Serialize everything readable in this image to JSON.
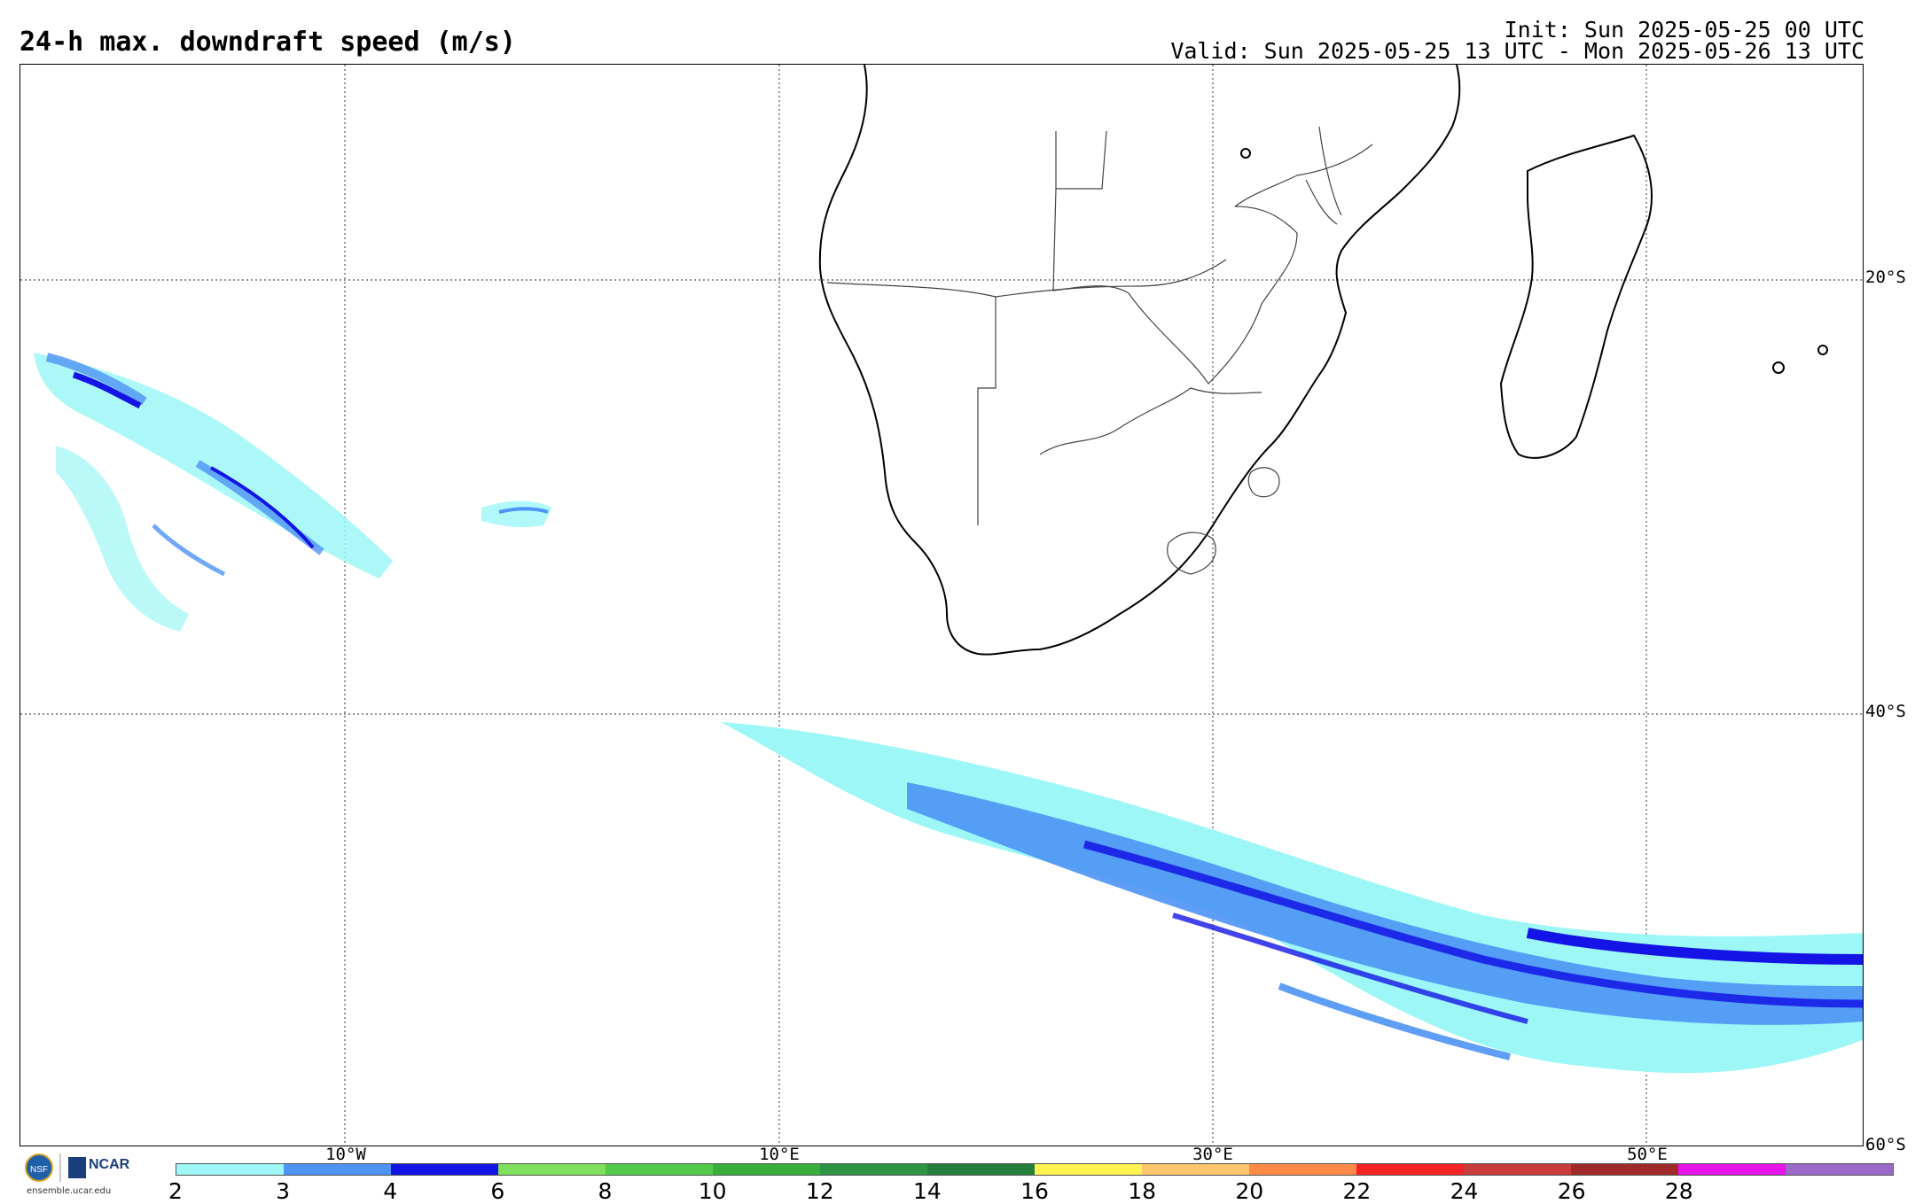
{
  "header": {
    "title": "24-h max. downdraft speed (m/s)",
    "init": "Init: Sun 2025-05-25 00 UTC",
    "valid": "Valid: Sun 2025-05-25 13 UTC - Mon 2025-05-26 13 UTC"
  },
  "map": {
    "region": "Southern Africa and South Atlantic / Indian Ocean",
    "lat_labels": [
      "20°S",
      "40°S",
      "60°S"
    ],
    "lon_labels": [
      "10°W",
      "10°E",
      "30°E",
      "50°E"
    ],
    "gridlines": "dotted",
    "field": "24-h max. downdraft speed",
    "units": "m/s"
  },
  "legend": {
    "ticks": [
      "2",
      "3",
      "4",
      "6",
      "8",
      "10",
      "12",
      "14",
      "16",
      "18",
      "20",
      "22",
      "24",
      "26",
      "28"
    ],
    "colors": [
      "#9ef7f7",
      "#4d94f5",
      "#1414e6",
      "#7ee05c",
      "#55c94a",
      "#3aae3a",
      "#2e9444",
      "#247e3c",
      "#fff352",
      "#ffc56c",
      "#ff8a4a",
      "#f42424",
      "#c83c3c",
      "#a02a2a",
      "#e614e6",
      "#9b69c9"
    ]
  },
  "branding": {
    "org1": "NSF",
    "org2": "NCAR",
    "url": "ensemble.ucar.edu"
  }
}
